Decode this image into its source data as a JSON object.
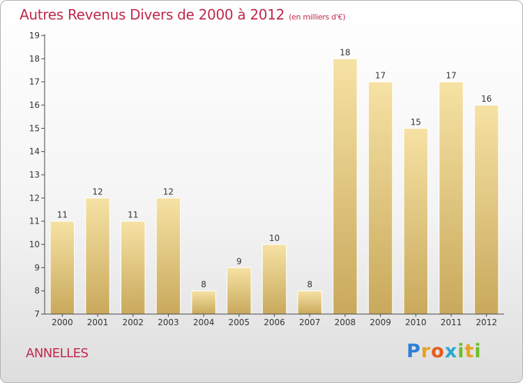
{
  "header": {
    "title": "Autres Revenus Divers de 2000 à 2012",
    "subtitle": "(en milliers d'€)"
  },
  "footer": {
    "town": "ANNELLES",
    "logo_letters": [
      "P",
      "r",
      "o",
      "x",
      "i",
      "t",
      "i"
    ],
    "logo_colors": [
      "#2f7fd6",
      "#e8a21c",
      "#e85a1c",
      "#2aa8d0",
      "#6cbf2a",
      "#e8a21c",
      "#6cbf2a"
    ]
  },
  "colors": {
    "title": "#c0284c",
    "bar_light": "#f6e2a4",
    "bar_dark": "#c9a95c",
    "axis": "#444444"
  },
  "chart_data": {
    "type": "bar",
    "title": "Autres Revenus Divers de 2000 à 2012",
    "subtitle": "(en milliers d'€)",
    "categories": [
      "2000",
      "2001",
      "2002",
      "2003",
      "2004",
      "2005",
      "2006",
      "2007",
      "2008",
      "2009",
      "2010",
      "2011",
      "2012"
    ],
    "values": [
      11,
      12,
      11,
      12,
      8,
      9,
      10,
      8,
      18,
      17,
      15,
      17,
      16
    ],
    "ylim": [
      7,
      19
    ],
    "yticks": [
      7,
      8,
      9,
      10,
      11,
      12,
      13,
      14,
      15,
      16,
      17,
      18,
      19
    ],
    "grid": false,
    "data_labels": true
  }
}
